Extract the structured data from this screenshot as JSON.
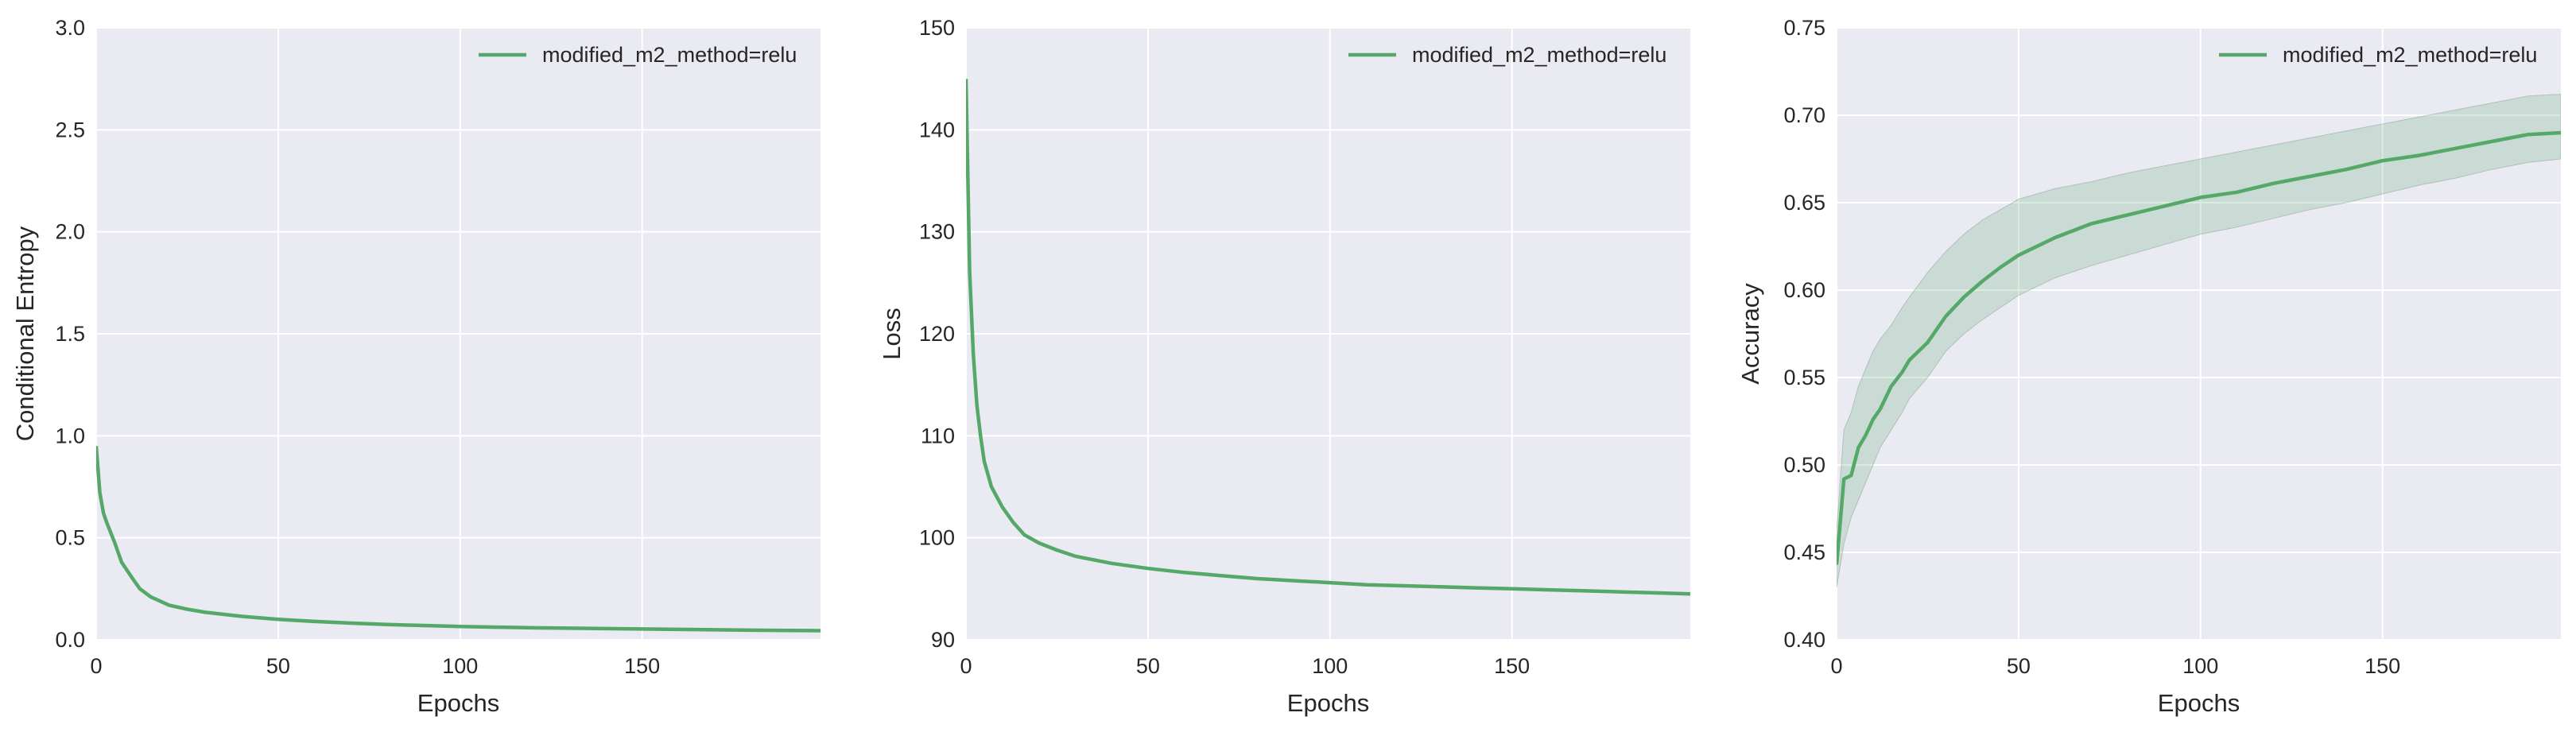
{
  "chart_data": [
    {
      "type": "line",
      "title": "",
      "xlabel": "Epochs",
      "ylabel": "Conditional Entropy",
      "xlim": [
        0,
        199
      ],
      "ylim": [
        0.0,
        3.0
      ],
      "xticks": [
        0,
        50,
        100,
        150
      ],
      "xtick_labels": [
        "0",
        "50",
        "100",
        "150"
      ],
      "yticks": [
        0.0,
        0.5,
        1.0,
        1.5,
        2.0,
        2.5,
        3.0
      ],
      "ytick_labels": [
        "0.0",
        "0.5",
        "1.0",
        "1.5",
        "2.0",
        "2.5",
        "3.0"
      ],
      "grid": true,
      "legend_position": "top-right",
      "series": [
        {
          "name": "modified_m2_method=relu",
          "color": "#55a868",
          "x": [
            0,
            1,
            2,
            3,
            5,
            7,
            10,
            12,
            15,
            20,
            25,
            30,
            40,
            50,
            60,
            70,
            80,
            90,
            100,
            110,
            120,
            130,
            140,
            150,
            160,
            170,
            180,
            190,
            199
          ],
          "y": [
            0.95,
            0.72,
            0.62,
            0.57,
            0.48,
            0.38,
            0.3,
            0.25,
            0.21,
            0.17,
            0.15,
            0.135,
            0.115,
            0.1,
            0.09,
            0.082,
            0.075,
            0.07,
            0.065,
            0.062,
            0.059,
            0.057,
            0.055,
            0.053,
            0.051,
            0.049,
            0.047,
            0.046,
            0.045
          ]
        }
      ]
    },
    {
      "type": "line",
      "title": "",
      "xlabel": "Epochs",
      "ylabel": "Loss",
      "xlim": [
        0,
        199
      ],
      "ylim": [
        90,
        150
      ],
      "xticks": [
        0,
        50,
        100,
        150
      ],
      "xtick_labels": [
        "0",
        "50",
        "100",
        "150"
      ],
      "yticks": [
        90,
        100,
        110,
        120,
        130,
        140,
        150
      ],
      "ytick_labels": [
        "90",
        "100",
        "110",
        "120",
        "130",
        "140",
        "150"
      ],
      "grid": true,
      "legend_position": "top-right",
      "series": [
        {
          "name": "modified_m2_method=relu",
          "color": "#55a868",
          "x": [
            0,
            1,
            2,
            3,
            4,
            5,
            7,
            10,
            13,
            16,
            20,
            25,
            30,
            40,
            50,
            60,
            70,
            80,
            90,
            100,
            110,
            120,
            130,
            140,
            150,
            160,
            170,
            180,
            190,
            199
          ],
          "y": [
            145,
            126,
            118,
            113,
            110,
            107.5,
            105,
            103,
            101.5,
            100.3,
            99.5,
            98.8,
            98.2,
            97.5,
            97.0,
            96.6,
            96.3,
            96.0,
            95.8,
            95.6,
            95.4,
            95.3,
            95.2,
            95.1,
            95.0,
            94.9,
            94.8,
            94.7,
            94.6,
            94.5
          ]
        }
      ]
    },
    {
      "type": "line",
      "title": "",
      "xlabel": "Epochs",
      "ylabel": "Accuracy",
      "xlim": [
        0,
        199
      ],
      "ylim": [
        0.4,
        0.75
      ],
      "xticks": [
        0,
        50,
        100,
        150
      ],
      "xtick_labels": [
        "0",
        "50",
        "100",
        "150"
      ],
      "yticks": [
        0.4,
        0.45,
        0.5,
        0.55,
        0.6,
        0.65,
        0.7,
        0.75
      ],
      "ytick_labels": [
        "0.40",
        "0.45",
        "0.50",
        "0.55",
        "0.60",
        "0.65",
        "0.70",
        "0.75"
      ],
      "grid": true,
      "legend_position": "top-right",
      "series": [
        {
          "name": "modified_m2_method=relu",
          "color": "#55a868",
          "band_color": "#55a868",
          "x": [
            0,
            2,
            4,
            6,
            8,
            10,
            12,
            15,
            18,
            20,
            25,
            30,
            35,
            40,
            45,
            50,
            60,
            70,
            80,
            90,
            100,
            110,
            120,
            130,
            140,
            150,
            160,
            170,
            180,
            190,
            199
          ],
          "y": [
            0.443,
            0.492,
            0.494,
            0.51,
            0.517,
            0.526,
            0.532,
            0.545,
            0.553,
            0.56,
            0.57,
            0.585,
            0.596,
            0.605,
            0.613,
            0.62,
            0.63,
            0.638,
            0.643,
            0.648,
            0.653,
            0.656,
            0.661,
            0.665,
            0.669,
            0.674,
            0.677,
            0.681,
            0.685,
            0.689,
            0.69
          ],
          "lower": [
            0.43,
            0.455,
            0.47,
            0.48,
            0.49,
            0.5,
            0.51,
            0.52,
            0.53,
            0.538,
            0.55,
            0.565,
            0.575,
            0.583,
            0.59,
            0.597,
            0.607,
            0.614,
            0.62,
            0.626,
            0.632,
            0.636,
            0.641,
            0.646,
            0.65,
            0.655,
            0.66,
            0.664,
            0.669,
            0.673,
            0.675
          ],
          "upper": [
            0.462,
            0.52,
            0.53,
            0.545,
            0.555,
            0.565,
            0.572,
            0.58,
            0.59,
            0.596,
            0.61,
            0.622,
            0.632,
            0.64,
            0.646,
            0.652,
            0.658,
            0.662,
            0.667,
            0.671,
            0.675,
            0.679,
            0.683,
            0.687,
            0.691,
            0.695,
            0.699,
            0.703,
            0.707,
            0.711,
            0.712
          ]
        }
      ]
    }
  ]
}
